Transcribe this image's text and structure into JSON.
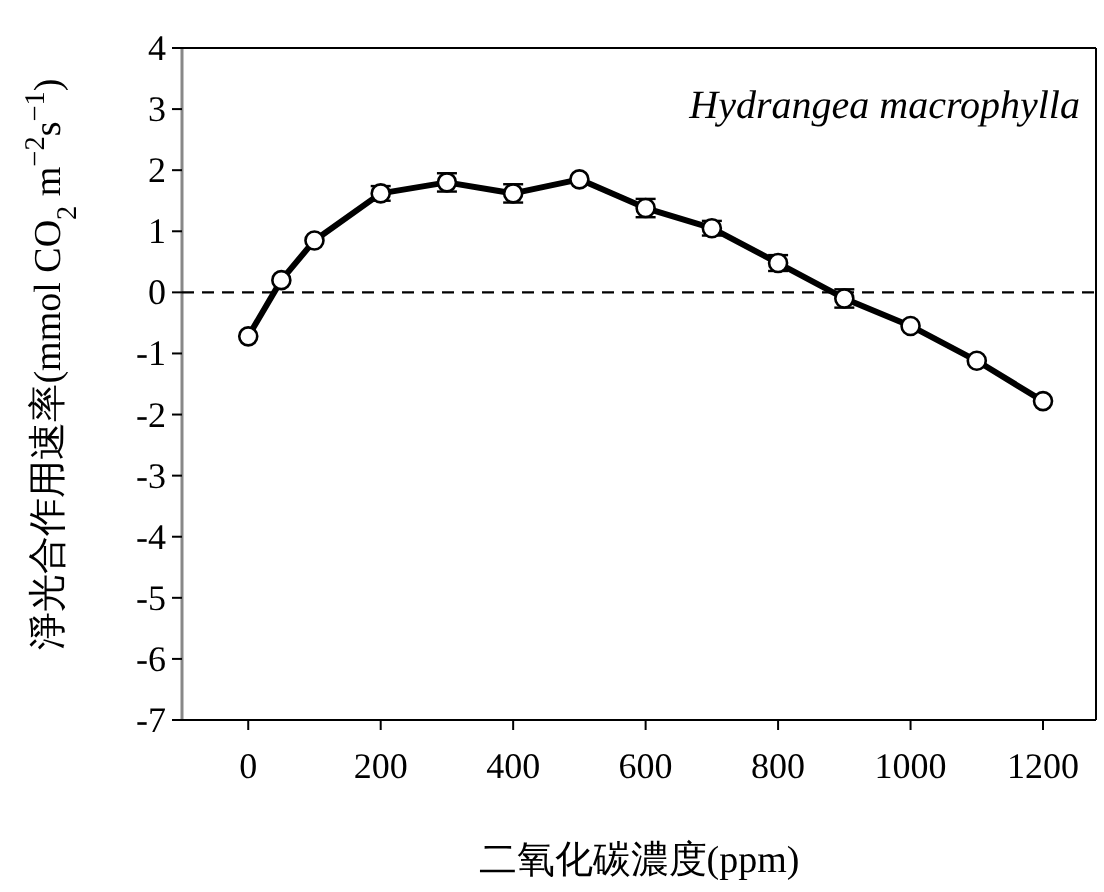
{
  "chart_data": {
    "type": "line",
    "xlabel": "二氧化碳濃度(ppm)",
    "ylabel": "淨光合作用速率(mmol CO$_{2}$ m$^{−2}$s$^{−1}$)",
    "annotations": [
      "Hydrangea macrophylla"
    ],
    "x": [
      0,
      50,
      100,
      200,
      300,
      400,
      500,
      600,
      700,
      800,
      900,
      1000,
      1100,
      1200
    ],
    "series": [
      {
        "color": "#000000",
        "values": [
          -0.72,
          0.2,
          0.85,
          1.62,
          1.8,
          1.62,
          1.85,
          1.38,
          1.05,
          0.48,
          -0.1,
          -0.55,
          -1.12,
          -1.78
        ],
        "errors": [
          null,
          null,
          null,
          0.12,
          0.15,
          0.15,
          null,
          0.15,
          0.12,
          0.13,
          0.15,
          null,
          null,
          null
        ]
      }
    ],
    "xlim": [
      -100,
      1280
    ],
    "xticks": [
      0,
      200,
      400,
      600,
      800,
      1000,
      1200
    ],
    "ylim": [
      -7,
      4
    ],
    "yticks": [
      4,
      3,
      2,
      1,
      0,
      -1,
      -2,
      -3,
      -4,
      -5,
      -6,
      -7
    ],
    "ref_lines": [
      {
        "axis": "y",
        "value": 0,
        "color": "#000000",
        "line_style": "dashed"
      }
    ],
    "marker": "circle",
    "line_style": "solid",
    "grid": false
  }
}
